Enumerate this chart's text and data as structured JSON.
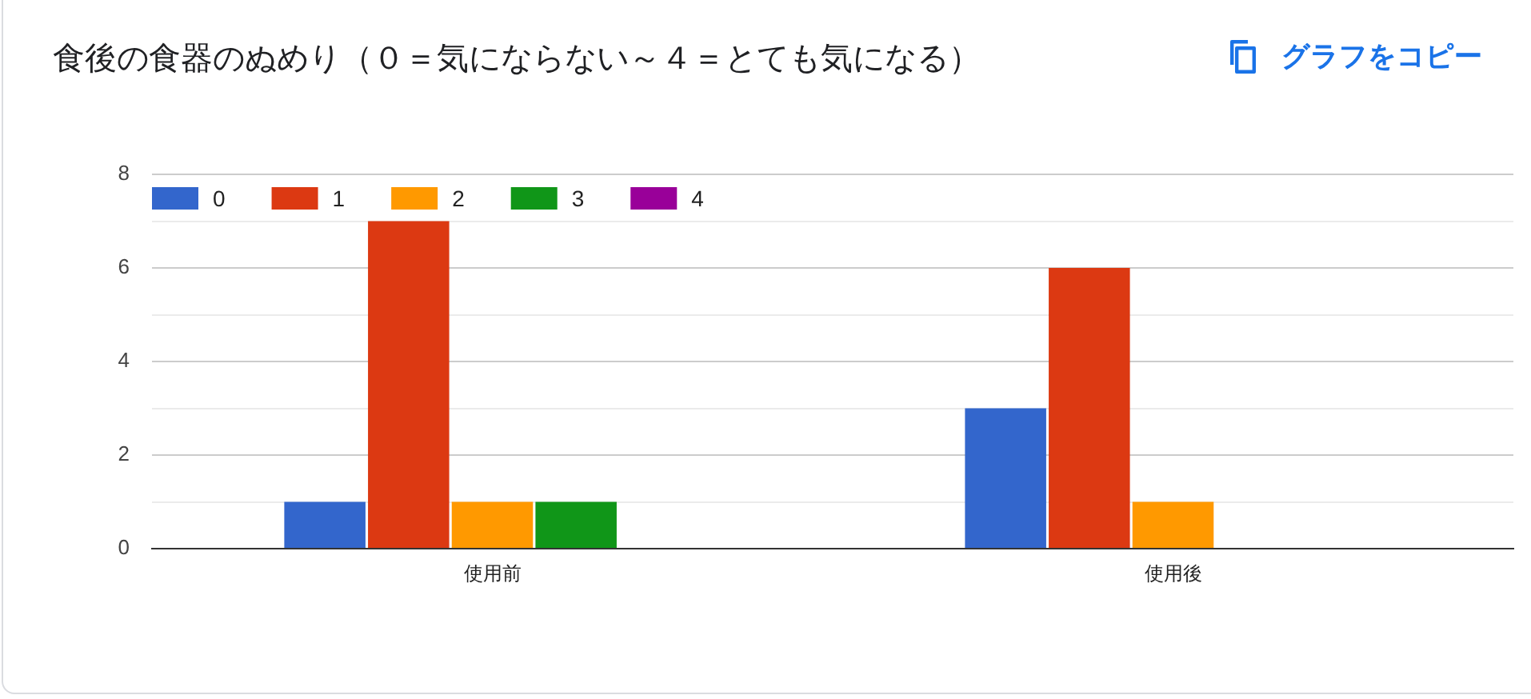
{
  "chart_data": {
    "type": "bar",
    "title": "食後の食器のぬめり（０＝気にならない～４＝とても気になる）",
    "annotations": [
      "グラフをコピー"
    ],
    "categories": [
      "使用前",
      "使用後"
    ],
    "series": [
      {
        "name": "0",
        "color": "#3366cc",
        "values": [
          1,
          3
        ]
      },
      {
        "name": "1",
        "color": "#dc3912",
        "values": [
          7,
          6
        ]
      },
      {
        "name": "2",
        "color": "#ff9900",
        "values": [
          1,
          1
        ]
      },
      {
        "name": "3",
        "color": "#109618",
        "values": [
          1,
          0
        ]
      },
      {
        "name": "4",
        "color": "#990099",
        "values": [
          0,
          0
        ]
      }
    ],
    "ylim": [
      0,
      8
    ],
    "yticks": [
      0,
      {
        "value": 1,
        "label": null
      },
      2,
      {
        "value": 3,
        "label": null
      },
      4,
      {
        "value": 5,
        "label": null
      },
      6,
      {
        "value": 7,
        "label": null
      },
      8
    ],
    "grid": "y",
    "legend": "top left"
  }
}
